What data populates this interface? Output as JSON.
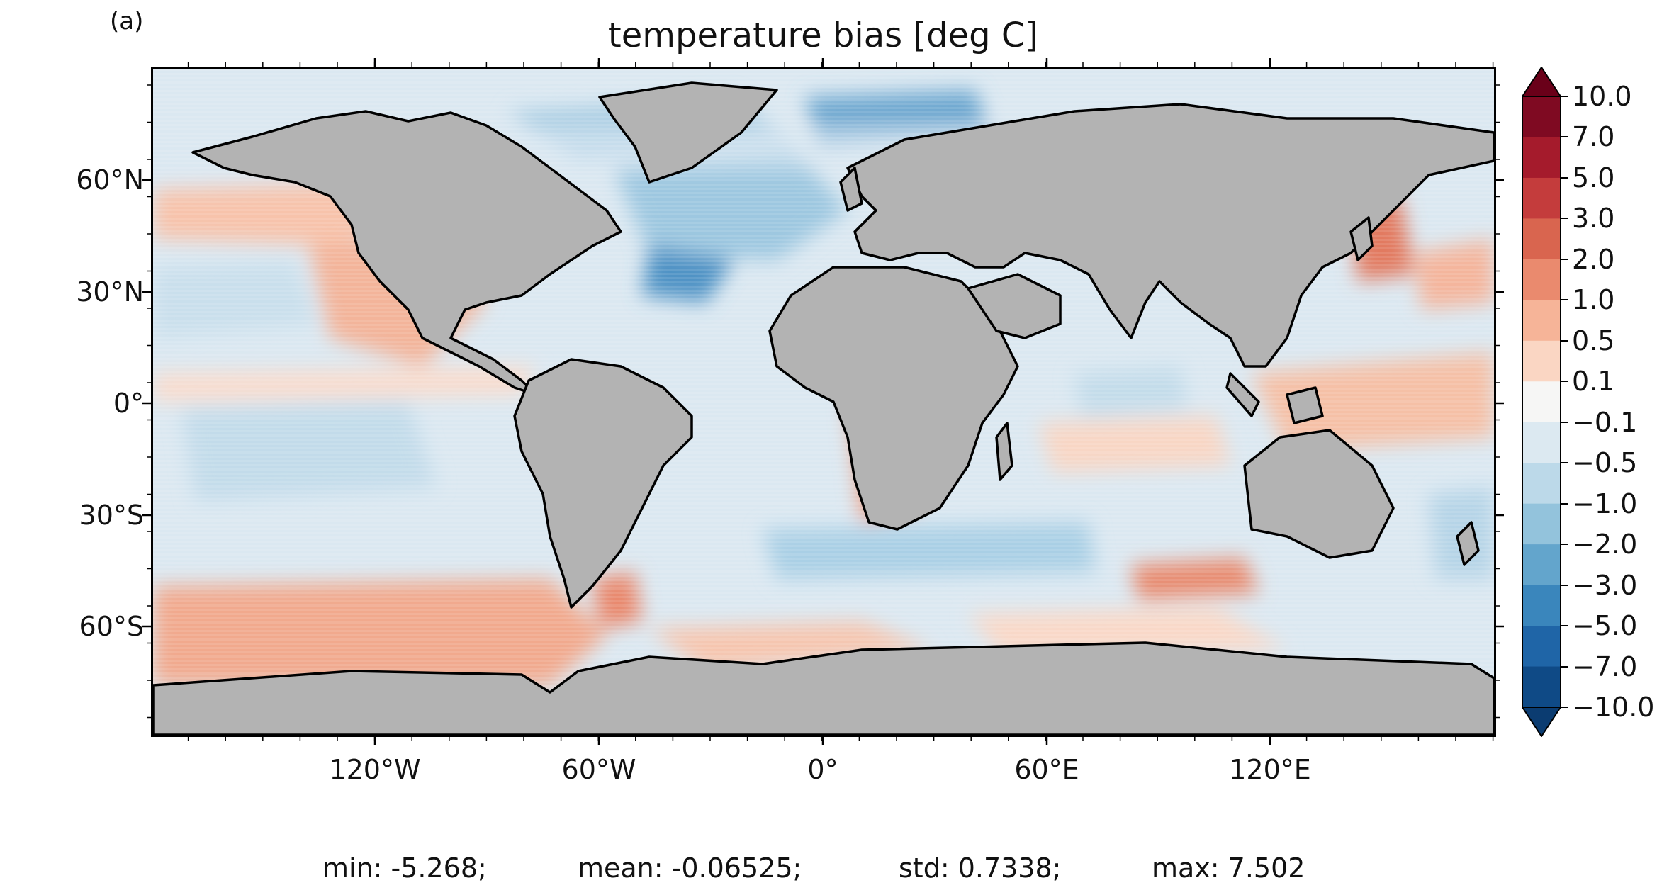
{
  "panel_label": "(a)",
  "title": "temperature bias [deg C]",
  "map": {
    "projection": "plate carree",
    "land_color": "#b3b3b3",
    "coastline_color": "#000000",
    "lat_ticks": [
      "60°N",
      "30°N",
      "0°",
      "30°S",
      "60°S"
    ],
    "lon_ticks": [
      "120°W",
      "60°W",
      "0°",
      "60°E",
      "120°E"
    ]
  },
  "colorbar": {
    "levels": [
      "10.0",
      "7.0",
      "5.0",
      "3.0",
      "2.0",
      "1.0",
      "0.5",
      "0.1",
      "−0.1",
      "−0.5",
      "−1.0",
      "−2.0",
      "−3.0",
      "−5.0",
      "−7.0",
      "−10.0"
    ],
    "colors": [
      "#7f0a22",
      "#a51b2c",
      "#c43c3c",
      "#d9654f",
      "#ea8a6e",
      "#f6b498",
      "#fad6c3",
      "#f6f6f5",
      "#dce9f1",
      "#bcd9e9",
      "#93c3dc",
      "#63a5cc",
      "#3a86bc",
      "#1f65a7",
      "#0f4a86"
    ],
    "extend": "both",
    "over_color": "#6a0019",
    "under_color": "#0b3c71"
  },
  "stats": {
    "min": "min: -5.268;",
    "mean": "mean: -0.06525;",
    "std": "std: 0.7338;",
    "max": "max: 7.502"
  }
}
